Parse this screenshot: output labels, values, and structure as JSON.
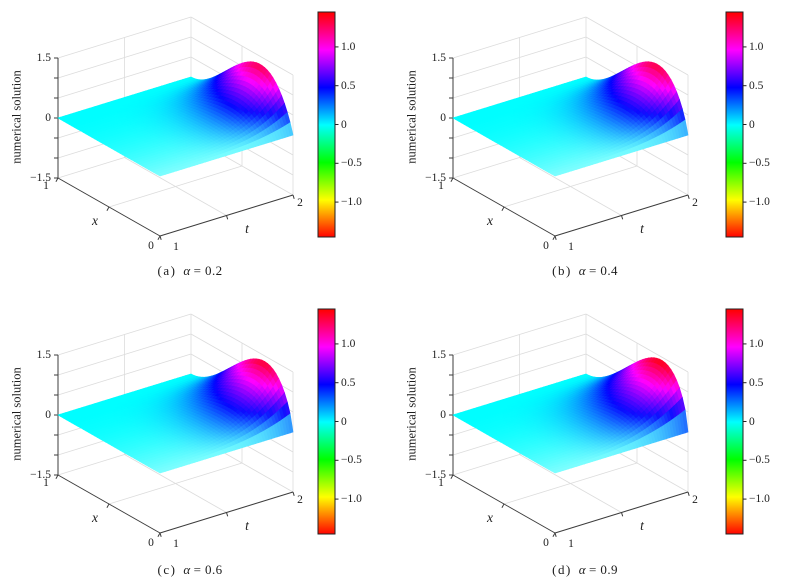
{
  "figure": {
    "background": "#ffffff",
    "zlabel": "numerical solution",
    "xlabel": "x",
    "tlabel": "t",
    "z_range": [
      -1.5,
      1.5
    ],
    "x_range": [
      0,
      1
    ],
    "t_range": [
      1,
      2
    ],
    "z_tick_labels": [
      "1.5",
      "0",
      "−1.5"
    ],
    "z_tick_values": [
      1.5,
      0,
      -1.5
    ],
    "z_minor_tick_step": 0.5,
    "x_tick_labels": [
      "1",
      "0"
    ],
    "x_tick_values": [
      1,
      0
    ],
    "t_tick_labels": [
      "1",
      "2"
    ],
    "t_tick_values": [
      1,
      2
    ],
    "colormap": "hsv",
    "color_axis": [
      -1.45,
      1.45
    ],
    "colorbar_tick_labels": [
      "1.0",
      "0.5",
      "0",
      "−0.5",
      "−1.0"
    ],
    "colorbar_tick_values": [
      1.0,
      0.5,
      0,
      -0.5,
      -1.0
    ],
    "flat_surface_color": "#00ffff",
    "grid_color": "#dcdcdc",
    "axis_color": "#3c3c3c",
    "text_color": "#1c1c1c"
  },
  "chart_data": [
    {
      "id": "a",
      "type": "surface",
      "caption_prefix": "(a)",
      "caption_alpha": "α",
      "caption_rest": "= 0.2",
      "alpha": 0.2,
      "zlabel": "numerical solution",
      "xlabel": "x",
      "tlabel": "t",
      "x_range": [
        0,
        1
      ],
      "t_range": [
        1,
        2
      ],
      "z_range": [
        -1.5,
        1.5
      ],
      "surface_model": {
        "description": "numerical solution ≈ 0 over most of the (x,t) domain; rises near t = 2 to a bump in x peaking near x ≈ 0.32",
        "peak": 1.3,
        "peak_x": 0.32,
        "growth_exponent": 4.2
      },
      "sample_x": [
        0,
        0.25,
        0.5,
        0.75,
        1
      ],
      "sample_t": [
        1,
        1.25,
        1.5,
        1.75,
        2
      ],
      "sample_z": [
        [
          0,
          0,
          0,
          0,
          0
        ],
        [
          0,
          0.0,
          0.07,
          0.37,
          1.25
        ],
        [
          0,
          0.0,
          0.06,
          0.32,
          1.07
        ],
        [
          0,
          0.0,
          0.02,
          0.12,
          0.39
        ],
        [
          0,
          0,
          0,
          0,
          0
        ]
      ]
    },
    {
      "id": "b",
      "type": "surface",
      "caption_prefix": "(b)",
      "caption_alpha": "α",
      "caption_rest": "= 0.4",
      "alpha": 0.4,
      "zlabel": "numerical solution",
      "xlabel": "x",
      "tlabel": "t",
      "x_range": [
        0,
        1
      ],
      "t_range": [
        1,
        2
      ],
      "z_range": [
        -1.5,
        1.5
      ],
      "surface_model": {
        "description": "numerical solution ≈ 0 over most of the (x,t) domain; rises near t = 2 to a bump in x peaking near x ≈ 0.30",
        "peak": 1.33,
        "peak_x": 0.3,
        "growth_exponent": 4.0
      },
      "sample_x": [
        0,
        0.25,
        0.5,
        0.75,
        1
      ],
      "sample_t": [
        1,
        1.25,
        1.5,
        1.75,
        2
      ],
      "sample_z": [
        [
          0,
          0,
          0,
          0,
          0
        ],
        [
          0,
          0.01,
          0.08,
          0.41,
          1.31
        ],
        [
          0,
          0.0,
          0.07,
          0.33,
          1.05
        ],
        [
          0,
          0.0,
          0.02,
          0.12,
          0.37
        ],
        [
          0,
          0,
          0,
          0,
          0
        ]
      ]
    },
    {
      "id": "c",
      "type": "surface",
      "caption_prefix": "(c)",
      "caption_alpha": "α",
      "caption_rest": "= 0.6",
      "alpha": 0.6,
      "zlabel": "numerical solution",
      "xlabel": "x",
      "tlabel": "t",
      "x_range": [
        0,
        1
      ],
      "t_range": [
        1,
        2
      ],
      "z_range": [
        -1.5,
        1.5
      ],
      "surface_model": {
        "description": "numerical solution ≈ 0 over most of the (x,t) domain; rises near t = 2 to a bump in x peaking near x ≈ 0.28",
        "peak": 1.36,
        "peak_x": 0.28,
        "growth_exponent": 3.6
      },
      "sample_x": [
        0,
        0.25,
        0.5,
        0.75,
        1
      ],
      "sample_t": [
        1,
        1.25,
        1.5,
        1.75,
        2
      ],
      "sample_z": [
        [
          0,
          0,
          0,
          0,
          0
        ],
        [
          0,
          0.01,
          0.11,
          0.48,
          1.35
        ],
        [
          0,
          0.01,
          0.09,
          0.37,
          1.03
        ],
        [
          0,
          0.0,
          0.03,
          0.13,
          0.35
        ],
        [
          0,
          0,
          0,
          0,
          0
        ]
      ]
    },
    {
      "id": "d",
      "type": "surface",
      "caption_prefix": "(d)",
      "caption_alpha": "α",
      "caption_rest": "= 0.9",
      "alpha": 0.9,
      "zlabel": "numerical solution",
      "xlabel": "x",
      "tlabel": "t",
      "x_range": [
        0,
        1
      ],
      "t_range": [
        1,
        2
      ],
      "z_range": [
        -1.5,
        1.5
      ],
      "surface_model": {
        "description": "numerical solution ≈ 0 over most of the (x,t) domain; rises near t = 2 to a bump in x peaking near x ≈ 0.26",
        "peak": 1.42,
        "peak_x": 0.26,
        "growth_exponent": 3.2
      },
      "sample_x": [
        0,
        0.25,
        0.5,
        0.75,
        1
      ],
      "sample_t": [
        1,
        1.25,
        1.5,
        1.75,
        2
      ],
      "sample_z": [
        [
          0,
          0,
          0,
          0,
          0
        ],
        [
          0,
          0.02,
          0.15,
          0.57,
          1.42
        ],
        [
          0,
          0.01,
          0.11,
          0.41,
          1.03
        ],
        [
          0,
          0.0,
          0.04,
          0.14,
          0.34
        ],
        [
          0,
          0,
          0,
          0,
          0
        ]
      ]
    }
  ]
}
